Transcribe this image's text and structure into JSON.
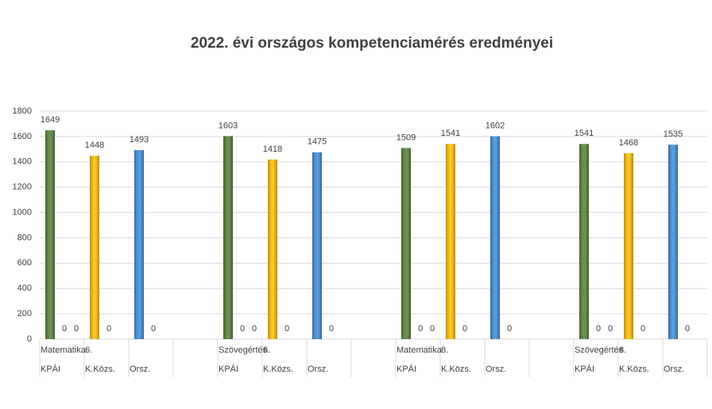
{
  "chart_data": {
    "type": "bar",
    "title": "2022. évi országos kompetenciamérés eredményei",
    "categories_top": [
      "Matematika",
      "6.",
      null,
      null,
      "Szövegértés",
      "6.",
      null,
      null,
      "Matematika",
      "8.",
      null,
      null,
      "Szövegértés",
      "8.",
      null
    ],
    "categories": [
      "KPÁI",
      "K.Közs.",
      "Orsz.",
      null,
      "KPÁI",
      "K.Közs.",
      "Orsz.",
      null,
      "KPÁI",
      "K.Közs.",
      "Orsz.",
      null,
      "KPÁI",
      "K.Közs.",
      "Orsz."
    ],
    "series": [
      {
        "colors": [
          "#548235",
          "#ffc000",
          "#3d8fd8",
          null,
          "#548235",
          "#ffc000",
          "#3d8fd8",
          null,
          "#548235",
          "#ffc000",
          "#3d8fd8",
          null,
          "#548235",
          "#ffc000",
          "#3d8fd8"
        ],
        "values": [
          1649,
          1448,
          1493,
          null,
          1603,
          1418,
          1475,
          null,
          1509,
          1541,
          1602,
          null,
          1541,
          1468,
          1535
        ]
      },
      {
        "color": "#3d8fd8",
        "values": [
          0,
          0,
          0,
          null,
          0,
          0,
          0,
          null,
          0,
          0,
          0,
          null,
          0,
          0,
          0
        ]
      },
      {
        "color": "#548235",
        "values": [
          0,
          null,
          null,
          null,
          0,
          null,
          null,
          null,
          0,
          null,
          null,
          null,
          0,
          null,
          null
        ]
      }
    ],
    "ylim": [
      0,
      1800
    ],
    "yticks": [
      0,
      200,
      400,
      600,
      800,
      1000,
      1200,
      1400,
      1600,
      1800
    ],
    "grid": true
  }
}
